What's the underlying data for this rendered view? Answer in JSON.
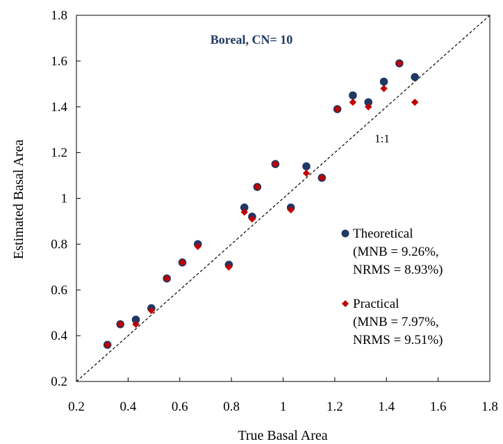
{
  "chart_data": {
    "type": "scatter",
    "title": "Boreal, CN= 10",
    "xlabel": "True Basal Area",
    "ylabel": "Estimated Basal Area",
    "xlim": [
      0.2,
      1.8
    ],
    "ylim": [
      0.2,
      1.8
    ],
    "x_ticks": [
      "0.2",
      "0.4",
      "0.6",
      "0.8",
      "1",
      "1.2",
      "1.4",
      "1.6",
      "1.8"
    ],
    "y_ticks": [
      "0.2",
      "0.4",
      "0.6",
      "0.8",
      "1",
      "1.2",
      "1.4",
      "1.6",
      "1.8"
    ],
    "grid": false,
    "reference_line": {
      "label": "1:1",
      "slope": 1,
      "intercept": 0,
      "style": "dashed"
    },
    "legend_position": "right",
    "series": [
      {
        "name": "Theoretical",
        "detail": [
          "(MNB = 9.26%,",
          "NRMS = 8.93%)"
        ],
        "marker": "circle",
        "color": "#1f3864",
        "points": [
          [
            0.32,
            0.36
          ],
          [
            0.37,
            0.45
          ],
          [
            0.43,
            0.47
          ],
          [
            0.49,
            0.52
          ],
          [
            0.55,
            0.65
          ],
          [
            0.61,
            0.72
          ],
          [
            0.67,
            0.8
          ],
          [
            0.79,
            0.71
          ],
          [
            0.85,
            0.96
          ],
          [
            0.88,
            0.92
          ],
          [
            0.9,
            1.05
          ],
          [
            0.97,
            1.15
          ],
          [
            1.03,
            0.96
          ],
          [
            1.09,
            1.14
          ],
          [
            1.15,
            1.09
          ],
          [
            1.21,
            1.39
          ],
          [
            1.27,
            1.45
          ],
          [
            1.33,
            1.42
          ],
          [
            1.39,
            1.51
          ],
          [
            1.45,
            1.59
          ],
          [
            1.51,
            1.53
          ]
        ]
      },
      {
        "name": "Practical",
        "detail": [
          "(MNB = 7.97%,",
          "NRMS = 9.51%)"
        ],
        "marker": "diamond",
        "color": "#c00000",
        "points": [
          [
            0.32,
            0.36
          ],
          [
            0.37,
            0.45
          ],
          [
            0.43,
            0.45
          ],
          [
            0.49,
            0.51
          ],
          [
            0.55,
            0.65
          ],
          [
            0.61,
            0.72
          ],
          [
            0.67,
            0.79
          ],
          [
            0.79,
            0.7
          ],
          [
            0.85,
            0.94
          ],
          [
            0.88,
            0.91
          ],
          [
            0.9,
            1.05
          ],
          [
            0.97,
            1.15
          ],
          [
            1.03,
            0.95
          ],
          [
            1.09,
            1.11
          ],
          [
            1.15,
            1.09
          ],
          [
            1.21,
            1.39
          ],
          [
            1.27,
            1.42
          ],
          [
            1.33,
            1.4
          ],
          [
            1.39,
            1.48
          ],
          [
            1.45,
            1.59
          ],
          [
            1.51,
            1.42
          ]
        ]
      }
    ]
  }
}
